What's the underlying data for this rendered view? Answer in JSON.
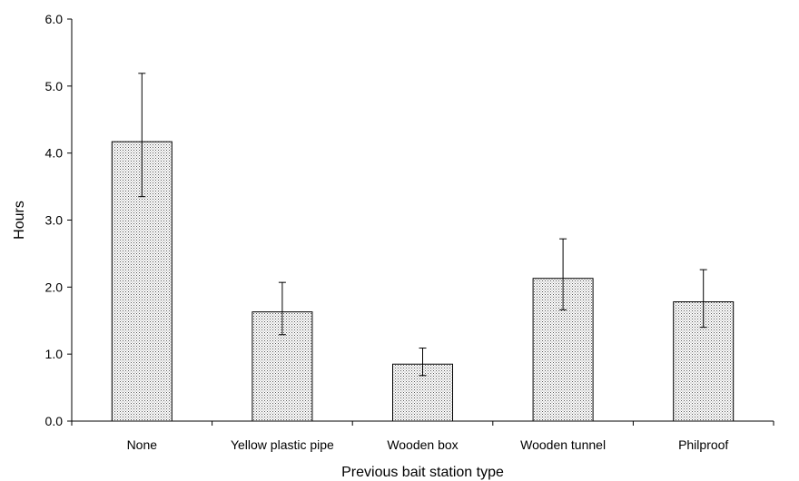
{
  "chart_data": {
    "type": "bar",
    "title": "",
    "xlabel": "Previous bait station type",
    "ylabel": "Hours",
    "categories": [
      "None",
      "Yellow plastic pipe",
      "Wooden box",
      "Wooden tunnel",
      "Philproof"
    ],
    "values": [
      4.17,
      1.63,
      0.85,
      2.13,
      1.78
    ],
    "error_low": [
      3.35,
      1.29,
      0.68,
      1.66,
      1.4
    ],
    "error_high": [
      5.19,
      2.07,
      1.09,
      2.72,
      2.26
    ],
    "ylim": [
      0,
      6
    ],
    "yticks": [
      "0.0",
      "1.0",
      "2.0",
      "3.0",
      "4.0",
      "5.0",
      "6.0"
    ],
    "grid": false,
    "legend": "none",
    "bar_fill": "dotted-gray",
    "colors": {
      "bar_dots": "#555555",
      "bar_background": "#ffffff",
      "axis": "#000000"
    }
  }
}
